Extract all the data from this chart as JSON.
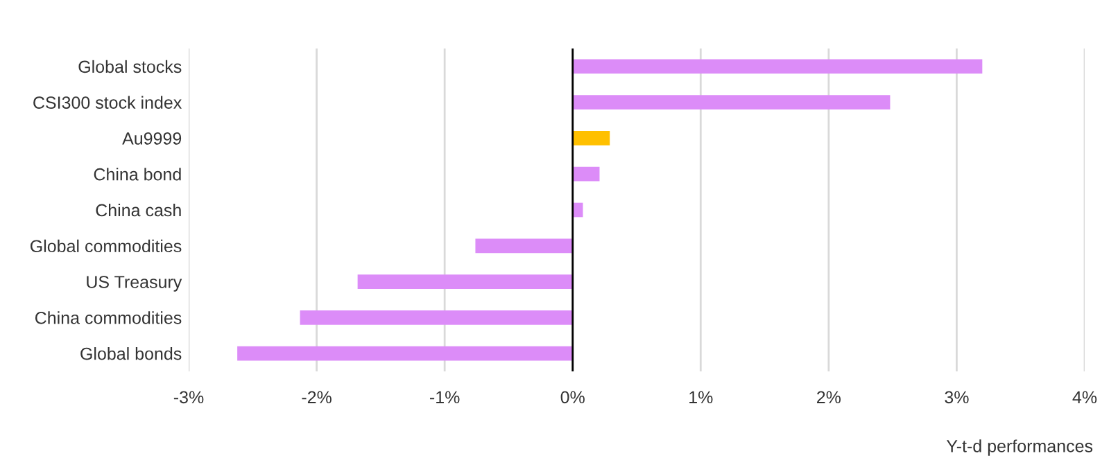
{
  "chart_data": {
    "type": "bar",
    "orientation": "horizontal",
    "xlabel": "Y-t-d performances",
    "categories": [
      "Global stocks",
      "CSI300 stock index",
      "Au9999",
      "China bond",
      "China cash",
      "Global commodities",
      "US Treasury",
      "China commodities",
      "Global bonds"
    ],
    "values": [
      3.2,
      2.48,
      0.29,
      0.21,
      0.08,
      -0.76,
      -1.68,
      -2.13,
      -2.62
    ],
    "colors": [
      "#dc8cf8",
      "#dc8cf8",
      "#ffc000",
      "#dc8cf8",
      "#dc8cf8",
      "#dc8cf8",
      "#dc8cf8",
      "#dc8cf8",
      "#dc8cf8"
    ],
    "xlim": [
      -3,
      4
    ],
    "xticks": [
      {
        "value": -3,
        "label": "-3%"
      },
      {
        "value": -2,
        "label": "-2%"
      },
      {
        "value": -1,
        "label": "-1%"
      },
      {
        "value": 0,
        "label": "0%"
      },
      {
        "value": 1,
        "label": "1%"
      },
      {
        "value": 2,
        "label": "2%"
      },
      {
        "value": 3,
        "label": "3%"
      },
      {
        "value": 4,
        "label": "4%"
      }
    ],
    "grid": "x",
    "legend": false
  }
}
